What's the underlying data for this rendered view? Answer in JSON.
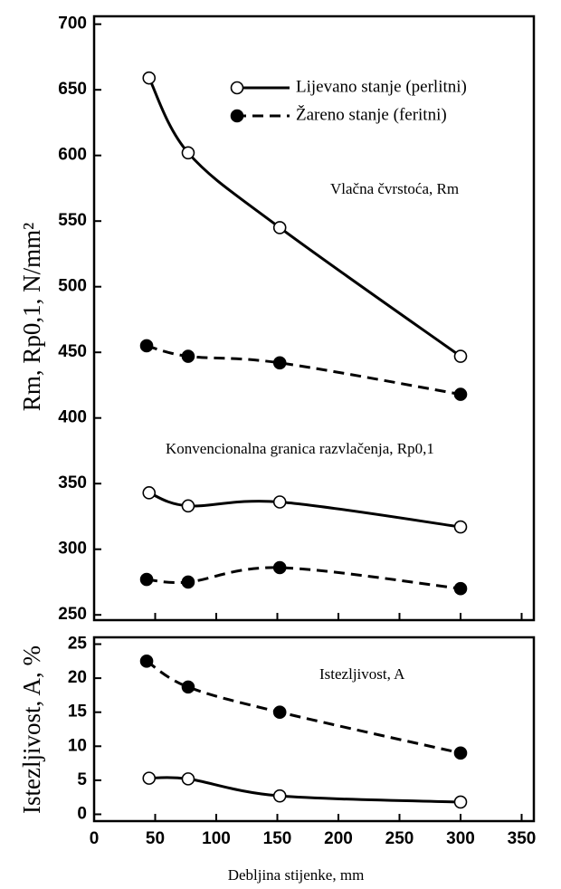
{
  "chart_data": [
    {
      "type": "scatter",
      "ylabel": "Rm, Rp0,1, N/mm²",
      "xlim": [
        0,
        360
      ],
      "ylim": [
        246,
        706
      ],
      "xticks": [
        0,
        50,
        100,
        150,
        200,
        250,
        300,
        350
      ],
      "yticks": [
        250,
        300,
        350,
        400,
        450,
        500,
        550,
        600,
        650,
        700
      ],
      "legend": "upper right",
      "annotations": [
        "Vlačna čvrstoća, Rm",
        "Konvencionalna granica razvlačenja, Rp0,1"
      ],
      "series": [
        {
          "name": "Lijevano stanje (perlitni)",
          "marker": "open",
          "dashed": false,
          "color": "#000000",
          "x": [
            45,
            77,
            152,
            300
          ],
          "rm": [
            659,
            602,
            545,
            447
          ],
          "rp0_1": [
            343,
            333,
            336,
            317
          ]
        },
        {
          "name": "Žareno stanje (feritni)",
          "marker": "filled",
          "dashed": true,
          "color": "#000000",
          "x": [
            43,
            77,
            152,
            300
          ],
          "rm": [
            455,
            447,
            442,
            418
          ],
          "rp0_1": [
            277,
            275,
            286,
            270
          ]
        }
      ]
    },
    {
      "type": "scatter",
      "ylabel": "Istezljivost, A, %",
      "xlabel": "Debljina stijenke, mm",
      "xlim": [
        0,
        360
      ],
      "ylim": [
        -1,
        26
      ],
      "xticks": [
        0,
        50,
        100,
        150,
        200,
        250,
        300,
        350
      ],
      "yticks": [
        0,
        5,
        10,
        15,
        20,
        25
      ],
      "annotations": [
        "Istezljivost, A"
      ],
      "series": [
        {
          "marker": "open",
          "dashed": false,
          "color": "#000000",
          "x": [
            45,
            77,
            152,
            300
          ],
          "values": [
            5.3,
            5.2,
            2.7,
            1.8
          ]
        },
        {
          "marker": "filled",
          "dashed": true,
          "color": "#000000",
          "x": [
            43,
            77,
            152,
            300
          ],
          "values": [
            22.5,
            18.7,
            15,
            9
          ]
        }
      ]
    }
  ]
}
